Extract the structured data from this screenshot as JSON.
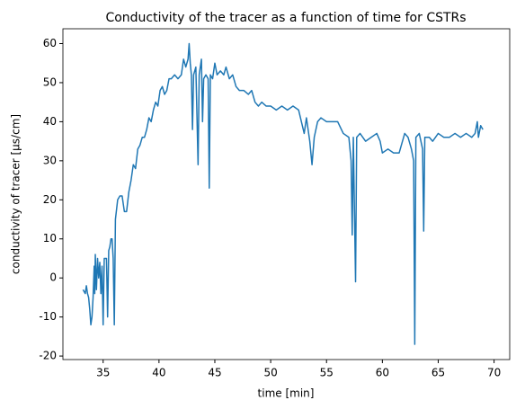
{
  "chart_data": {
    "type": "line",
    "title": "Conductivity of the tracer as a function of time for CSTRs",
    "xlabel": "time [min]",
    "ylabel": "conductivity of tracer [µs/cm]",
    "color": "#1f77b4",
    "x": [
      33.2,
      33.4,
      33.5,
      33.6,
      33.7,
      33.8,
      33.9,
      34.0,
      34.1,
      34.2,
      34.25,
      34.3,
      34.4,
      34.5,
      34.6,
      34.7,
      34.8,
      34.9,
      35.0,
      35.1,
      35.3,
      35.4,
      35.5,
      35.6,
      35.7,
      35.8,
      35.9,
      36.0,
      36.1,
      36.3,
      36.5,
      36.7,
      36.9,
      37.1,
      37.3,
      37.5,
      37.7,
      37.9,
      38.1,
      38.3,
      38.5,
      38.7,
      38.9,
      39.1,
      39.3,
      39.5,
      39.7,
      39.9,
      40.1,
      40.3,
      40.5,
      40.7,
      40.9,
      41.1,
      41.4,
      41.7,
      42.0,
      42.2,
      42.4,
      42.6,
      42.7,
      42.8,
      42.9,
      43.0,
      43.1,
      43.3,
      43.5,
      43.6,
      43.8,
      43.9,
      44.0,
      44.2,
      44.4,
      44.5,
      44.6,
      44.8,
      45.0,
      45.2,
      45.5,
      45.8,
      46.0,
      46.3,
      46.6,
      46.9,
      47.2,
      47.6,
      48.0,
      48.3,
      48.6,
      48.9,
      49.2,
      49.6,
      50.0,
      50.5,
      51.0,
      51.5,
      52.0,
      52.5,
      53.0,
      53.2,
      53.5,
      53.7,
      53.9,
      54.2,
      54.5,
      55.0,
      55.5,
      56.0,
      56.5,
      57.0,
      57.2,
      57.3,
      57.4,
      57.6,
      57.7,
      58.0,
      58.5,
      59.0,
      59.5,
      59.8,
      60.0,
      60.5,
      61.0,
      61.5,
      62.0,
      62.3,
      62.6,
      62.8,
      62.9,
      63.0,
      63.3,
      63.6,
      63.7,
      63.8,
      64.2,
      64.5,
      65.0,
      65.5,
      66.0,
      66.5,
      67.0,
      67.5,
      68.0,
      68.3,
      68.5,
      68.6,
      68.8,
      69.0
    ],
    "values": [
      -3,
      -4,
      -2,
      -4,
      -5,
      -8,
      -12,
      -10,
      -5,
      3,
      -4,
      6,
      -3,
      5,
      0,
      4,
      -4,
      3,
      -12,
      5,
      5,
      -10,
      7,
      8,
      10,
      10,
      5,
      -12,
      15,
      20,
      21,
      21,
      17,
      17,
      22,
      25,
      29,
      28,
      33,
      34,
      36,
      36,
      38,
      41,
      40,
      43,
      45,
      44,
      48,
      49,
      47,
      48,
      51,
      51,
      52,
      51,
      52,
      56,
      54,
      56,
      60,
      55,
      52,
      38,
      52,
      54,
      29,
      52,
      56,
      40,
      51,
      52,
      51,
      23,
      52,
      51,
      55,
      52,
      53,
      52,
      54,
      51,
      52,
      49,
      48,
      48,
      47,
      48,
      45,
      44,
      45,
      44,
      44,
      43,
      44,
      43,
      44,
      43,
      37,
      41,
      35,
      29,
      36,
      40,
      41,
      40,
      40,
      40,
      37,
      36,
      30,
      11,
      36,
      -1,
      36,
      37,
      35,
      36,
      37,
      35,
      32,
      33,
      32,
      32,
      37,
      36,
      33,
      30,
      -17,
      36,
      37,
      33,
      12,
      36,
      36,
      35,
      37,
      36,
      36,
      37,
      36,
      37,
      36,
      37,
      40,
      36,
      39,
      38
    ],
    "xlim": [
      31.4,
      71.4
    ],
    "ylim": [
      -20.9,
      63.8
    ],
    "xticks": [
      35,
      40,
      45,
      50,
      55,
      60,
      65,
      70
    ],
    "yticks": [
      -20,
      -10,
      0,
      10,
      20,
      30,
      40,
      50,
      60
    ]
  }
}
